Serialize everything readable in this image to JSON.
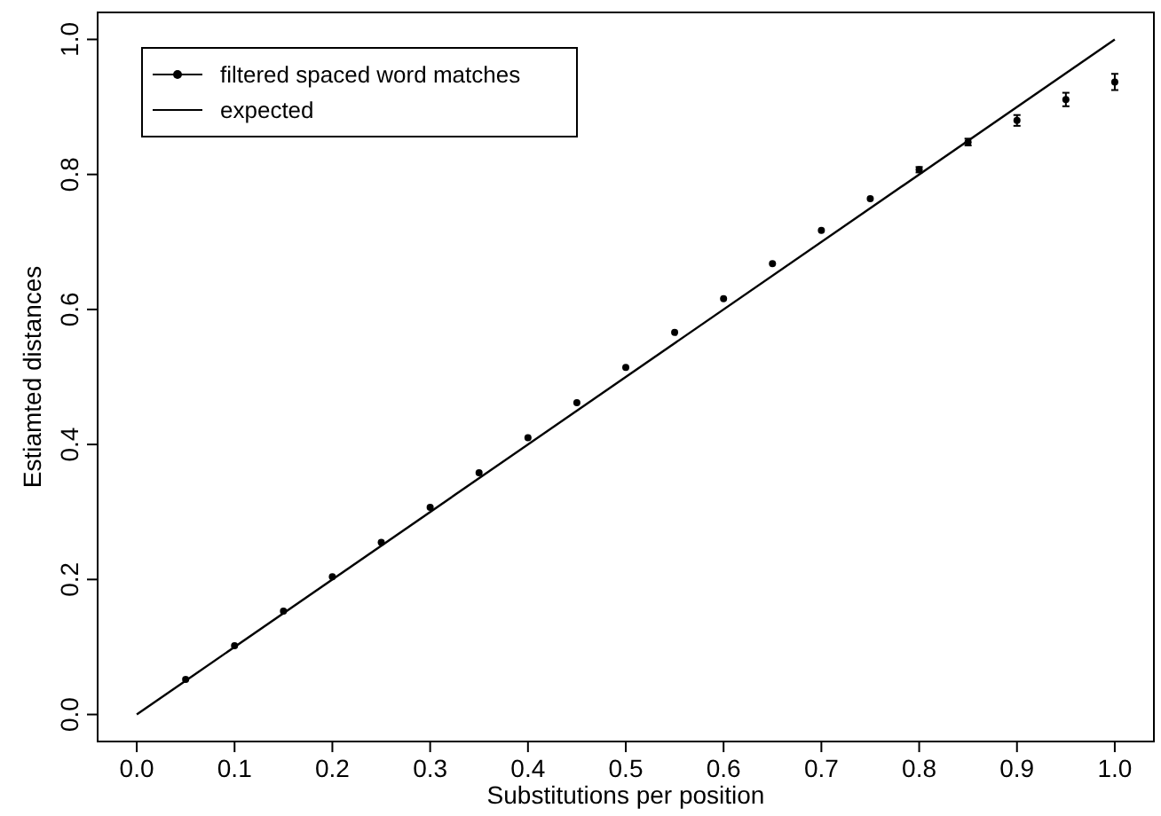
{
  "chart_data": {
    "type": "scatter",
    "xlabel": "Substitutions per position",
    "ylabel": "Estiamted distances",
    "xlim": [
      -0.04,
      1.04
    ],
    "ylim": [
      -0.04,
      1.04
    ],
    "xticks": [
      {
        "value": 0,
        "label": "0.0"
      },
      0.1,
      0.2,
      0.3,
      0.4,
      0.5,
      0.6,
      0.7,
      0.8,
      0.9,
      {
        "value": 1,
        "label": "1.0"
      }
    ],
    "yticks": [
      {
        "value": 0,
        "label": "0.0"
      },
      0.2,
      0.4,
      0.6,
      0.8,
      {
        "value": 1,
        "label": "1.0"
      }
    ],
    "legend": "top left",
    "grid": false,
    "series": [
      {
        "name": "filtered spaced word matches",
        "marker": "circle",
        "color": "#000000",
        "x": [
          0.05,
          0.1,
          0.15,
          0.2,
          0.25,
          0.3,
          0.35,
          0.4,
          0.45,
          0.5,
          0.55,
          0.6,
          0.65,
          0.7,
          0.75,
          0.8,
          0.85,
          0.9,
          0.95,
          1.0
        ],
        "values": [
          0.052,
          0.102,
          0.153,
          0.204,
          0.255,
          0.307,
          0.358,
          0.41,
          0.462,
          0.514,
          0.566,
          0.616,
          0.668,
          0.717,
          0.764,
          0.807,
          0.848,
          0.88,
          0.911,
          0.937
        ],
        "errors": [
          null,
          null,
          null,
          null,
          null,
          null,
          null,
          null,
          null,
          null,
          null,
          null,
          null,
          null,
          null,
          0.004,
          0.005,
          0.008,
          0.01,
          0.012
        ]
      },
      {
        "name": "expected",
        "type": "line",
        "line_style": "solid",
        "color": "#000000",
        "x": [
          0,
          1
        ],
        "values": [
          0,
          1
        ]
      }
    ]
  }
}
